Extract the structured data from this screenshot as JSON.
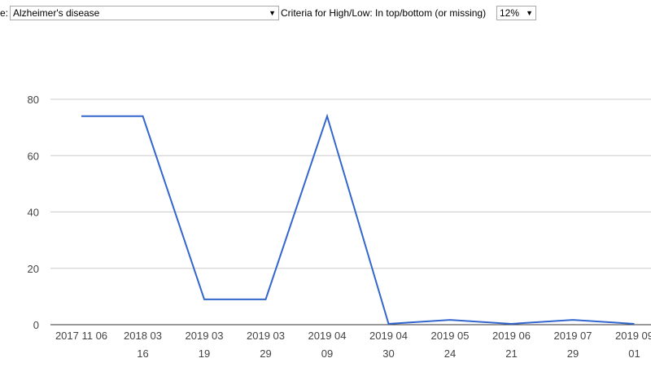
{
  "controls": {
    "disease_label": "e:",
    "disease_value": "Alzheimer's disease",
    "criteria_label": "Criteria for High/Low: In top/bottom (or missing)",
    "criteria_value": "12%"
  },
  "chart_data": {
    "type": "line",
    "categories": [
      "2017 11 06",
      "2018 03 16",
      "2019 03 19",
      "2019 03 29",
      "2019 04 09",
      "2019 04 30",
      "2019 05 24",
      "2019 06 21",
      "2019 07 29",
      "2019 09 01"
    ],
    "series": [
      {
        "color": "#3366cc",
        "values": [
          74,
          74,
          9,
          9,
          74,
          0.3,
          1.7,
          0.3,
          1.7,
          0.3
        ]
      }
    ],
    "ylim": [
      0,
      80
    ],
    "yticks": [
      0,
      20,
      40,
      60,
      80
    ],
    "grid": true
  }
}
